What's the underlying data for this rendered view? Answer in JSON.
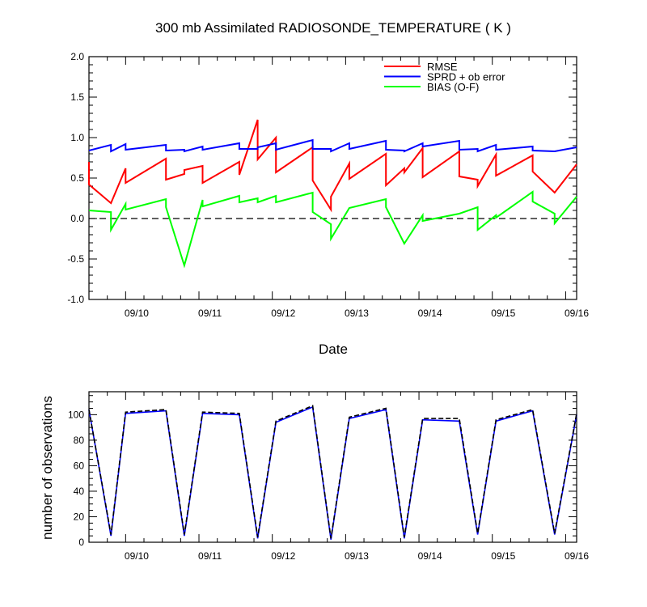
{
  "chart_data": [
    {
      "type": "line",
      "title": "300 mb Assimilated RADIOSONDE_TEMPERATURE ( K )",
      "xlabel": "Date",
      "ylabel": "",
      "xlim": [
        "09/09 12Z",
        "09/16 00Z"
      ],
      "ylim": [
        -1.0,
        2.0
      ],
      "x_tick_labels": [
        "09/10",
        "09/11",
        "09/12",
        "09/13",
        "09/14",
        "09/15",
        "09/16"
      ],
      "y_tick_labels": [
        "-1.0",
        "-0.5",
        "0.0",
        "0.5",
        "1.0",
        "1.5",
        "2.0"
      ],
      "y_ticks": [
        -1.0,
        -0.5,
        0.0,
        0.5,
        1.0,
        1.5,
        2.0
      ],
      "reference_line": 0.0,
      "legend_placement": "top-right",
      "grid": false,
      "series": [
        {
          "name": "RMSE",
          "color": "#ff0000",
          "points": [
            [
              0.0,
              0.7
            ],
            [
              0.0,
              0.42
            ],
            [
              0.3,
              0.19
            ],
            [
              0.5,
              0.62
            ],
            [
              0.5,
              0.44
            ],
            [
              1.05,
              0.74
            ],
            [
              1.05,
              0.48
            ],
            [
              1.3,
              0.55
            ],
            [
              1.3,
              0.6
            ],
            [
              1.55,
              0.65
            ],
            [
              1.55,
              0.44
            ],
            [
              2.05,
              0.7
            ],
            [
              2.05,
              0.54
            ],
            [
              2.3,
              1.22
            ],
            [
              2.3,
              0.73
            ],
            [
              2.55,
              1.0
            ],
            [
              2.55,
              0.57
            ],
            [
              3.05,
              0.88
            ],
            [
              3.05,
              0.47
            ],
            [
              3.3,
              0.11
            ],
            [
              3.3,
              0.27
            ],
            [
              3.55,
              0.68
            ],
            [
              3.55,
              0.49
            ],
            [
              4.05,
              0.8
            ],
            [
              4.05,
              0.41
            ],
            [
              4.3,
              0.62
            ],
            [
              4.3,
              0.57
            ],
            [
              4.55,
              0.87
            ],
            [
              4.55,
              0.51
            ],
            [
              5.05,
              0.83
            ],
            [
              5.05,
              0.52
            ],
            [
              5.3,
              0.48
            ],
            [
              5.3,
              0.4
            ],
            [
              5.55,
              0.79
            ],
            [
              5.55,
              0.53
            ],
            [
              6.05,
              0.78
            ],
            [
              6.05,
              0.58
            ],
            [
              6.35,
              0.32
            ],
            [
              6.65,
              0.67
            ]
          ]
        },
        {
          "name": "SPRD + ob error",
          "color": "#0000ff",
          "points": [
            [
              0.0,
              0.84
            ],
            [
              0.3,
              0.91
            ],
            [
              0.3,
              0.83
            ],
            [
              0.5,
              0.92
            ],
            [
              0.5,
              0.85
            ],
            [
              1.05,
              0.91
            ],
            [
              1.05,
              0.84
            ],
            [
              1.3,
              0.85
            ],
            [
              1.3,
              0.83
            ],
            [
              1.55,
              0.89
            ],
            [
              1.55,
              0.85
            ],
            [
              2.05,
              0.93
            ],
            [
              2.05,
              0.86
            ],
            [
              2.3,
              0.86
            ],
            [
              2.3,
              0.88
            ],
            [
              2.55,
              0.93
            ],
            [
              2.55,
              0.85
            ],
            [
              3.05,
              0.97
            ],
            [
              3.05,
              0.86
            ],
            [
              3.3,
              0.86
            ],
            [
              3.3,
              0.83
            ],
            [
              3.55,
              0.93
            ],
            [
              3.55,
              0.86
            ],
            [
              4.05,
              0.96
            ],
            [
              4.05,
              0.85
            ],
            [
              4.3,
              0.84
            ],
            [
              4.3,
              0.83
            ],
            [
              4.55,
              0.93
            ],
            [
              4.55,
              0.89
            ],
            [
              5.05,
              0.96
            ],
            [
              5.05,
              0.85
            ],
            [
              5.3,
              0.86
            ],
            [
              5.3,
              0.83
            ],
            [
              5.55,
              0.91
            ],
            [
              5.55,
              0.85
            ],
            [
              6.05,
              0.89
            ],
            [
              6.05,
              0.84
            ],
            [
              6.35,
              0.83
            ],
            [
              6.65,
              0.88
            ]
          ]
        },
        {
          "name": "BIAS (O-F)",
          "color": "#00ff00",
          "points": [
            [
              0.0,
              0.1
            ],
            [
              0.3,
              0.08
            ],
            [
              0.3,
              -0.14
            ],
            [
              0.5,
              0.18
            ],
            [
              0.5,
              0.11
            ],
            [
              1.05,
              0.24
            ],
            [
              1.05,
              0.14
            ],
            [
              1.3,
              -0.58
            ],
            [
              1.55,
              0.23
            ],
            [
              1.55,
              0.15
            ],
            [
              2.05,
              0.28
            ],
            [
              2.05,
              0.2
            ],
            [
              2.3,
              0.25
            ],
            [
              2.3,
              0.2
            ],
            [
              2.55,
              0.28
            ],
            [
              2.55,
              0.2
            ],
            [
              3.05,
              0.32
            ],
            [
              3.05,
              0.08
            ],
            [
              3.3,
              -0.07
            ],
            [
              3.3,
              -0.25
            ],
            [
              3.55,
              0.13
            ],
            [
              4.05,
              0.24
            ],
            [
              4.05,
              0.14
            ],
            [
              4.3,
              -0.31
            ],
            [
              4.55,
              0.04
            ],
            [
              4.55,
              -0.03
            ],
            [
              5.05,
              0.06
            ],
            [
              5.3,
              0.14
            ],
            [
              5.3,
              -0.14
            ],
            [
              5.55,
              0.04
            ],
            [
              5.55,
              0.01
            ],
            [
              6.05,
              0.33
            ],
            [
              6.05,
              0.21
            ],
            [
              6.35,
              0.06
            ],
            [
              6.35,
              -0.06
            ],
            [
              6.65,
              0.27
            ]
          ]
        }
      ]
    },
    {
      "type": "line",
      "title": "",
      "xlabel": "",
      "ylabel": "number of observations",
      "xlim": [
        "09/09 12Z",
        "09/16 00Z"
      ],
      "ylim": [
        0,
        118
      ],
      "x_tick_labels": [
        "09/10",
        "09/11",
        "09/12",
        "09/13",
        "09/14",
        "09/15",
        "09/16"
      ],
      "y_tick_labels": [
        "0",
        "20",
        "40",
        "60",
        "80",
        "100"
      ],
      "y_ticks": [
        0,
        20,
        40,
        60,
        80,
        100
      ],
      "grid": false,
      "series": [
        {
          "color": "#0000ff",
          "line_style": "solid",
          "points": [
            [
              0.0,
              104
            ],
            [
              0.3,
              5
            ],
            [
              0.5,
              101
            ],
            [
              1.05,
              103
            ],
            [
              1.3,
              5
            ],
            [
              1.55,
              101
            ],
            [
              2.05,
              100
            ],
            [
              2.3,
              3
            ],
            [
              2.55,
              94
            ],
            [
              3.05,
              106
            ],
            [
              3.3,
              2
            ],
            [
              3.55,
              97
            ],
            [
              4.05,
              104
            ],
            [
              4.3,
              3
            ],
            [
              4.55,
              96
            ],
            [
              5.05,
              95
            ],
            [
              5.3,
              6
            ],
            [
              5.55,
              95
            ],
            [
              6.05,
              103
            ],
            [
              6.35,
              6
            ],
            [
              6.65,
              100
            ]
          ]
        },
        {
          "color": "#000000",
          "line_style": "dashed",
          "points": [
            [
              0.0,
              104
            ],
            [
              0.3,
              6
            ],
            [
              0.5,
              102
            ],
            [
              1.05,
              104
            ],
            [
              1.3,
              6
            ],
            [
              1.55,
              102
            ],
            [
              2.05,
              101
            ],
            [
              2.3,
              4
            ],
            [
              2.55,
              95
            ],
            [
              3.05,
              107
            ],
            [
              3.3,
              3
            ],
            [
              3.55,
              98
            ],
            [
              4.05,
              105
            ],
            [
              4.3,
              4
            ],
            [
              4.55,
              97
            ],
            [
              5.05,
              97
            ],
            [
              5.3,
              7
            ],
            [
              5.55,
              96
            ],
            [
              6.05,
              104
            ],
            [
              6.35,
              7
            ],
            [
              6.65,
              101
            ]
          ]
        }
      ]
    }
  ]
}
